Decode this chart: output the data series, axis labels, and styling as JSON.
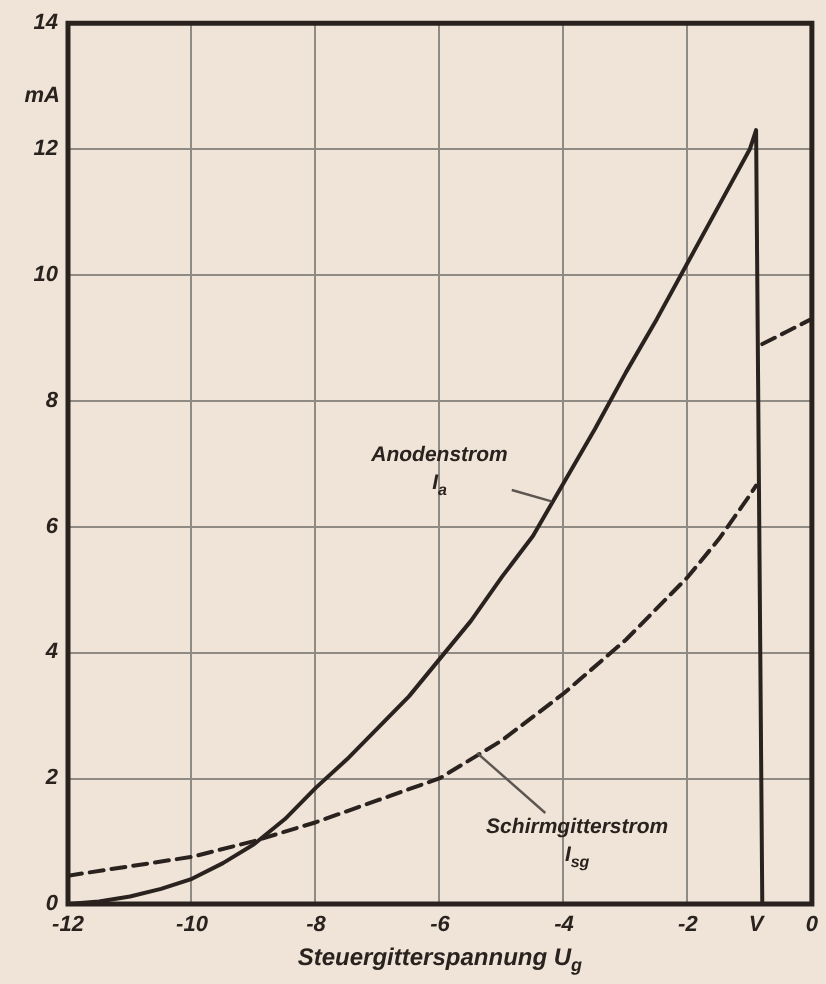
{
  "chart_data": {
    "type": "line",
    "xlabel": "Steuergitterspannung U$_{g}$",
    "ylabel": "mA",
    "xlim": [
      -12,
      0
    ],
    "ylim": [
      0,
      14
    ],
    "xticks": [
      -12,
      -10,
      -8,
      -6,
      -4,
      -2,
      {
        "value": -0.9,
        "label": "V"
      },
      0
    ],
    "yticks": [
      0,
      2,
      4,
      6,
      8,
      10,
      12,
      14
    ],
    "grid": true,
    "series": [
      {
        "color": "#2a221e",
        "line_style": "solid",
        "x": [
          -12,
          -11.5,
          -11,
          -10.5,
          -10,
          -9.5,
          -9,
          -8.5,
          -8,
          -7.5,
          -7,
          -6.5,
          -6,
          -5.5,
          -5,
          -4.5,
          -4,
          -3.5,
          -3,
          -2.5,
          -2,
          -1.5,
          -1,
          -0.9,
          -0.8
        ],
        "values": [
          0,
          0.04,
          0.12,
          0.24,
          0.4,
          0.65,
          0.95,
          1.35,
          1.85,
          2.3,
          2.8,
          3.3,
          3.9,
          4.5,
          5.2,
          5.85,
          6.7,
          7.55,
          8.45,
          9.3,
          10.2,
          11.1,
          12.0,
          12.3,
          0
        ]
      },
      {
        "color": "#2a221e",
        "line_style": "dashed",
        "x": [
          -12,
          -11,
          -10,
          -9,
          -8,
          -7,
          -6,
          -5,
          -4,
          -3,
          -2,
          -1.5,
          -1,
          -0.9,
          -0.85,
          -0.8,
          -0.4,
          0
        ],
        "values": [
          0.45,
          0.6,
          0.75,
          1.0,
          1.3,
          1.65,
          2.0,
          2.6,
          3.35,
          4.2,
          5.2,
          5.8,
          6.5,
          6.65,
          null,
          8.9,
          9.1,
          9.3
        ]
      }
    ],
    "annotations": [
      {
        "text": "Anodenstrom I$_{a}$",
        "x": -4.2,
        "y": 6.4
      },
      {
        "text": "Schirmgitterstrom I$_{sg}$",
        "x": -5.4,
        "y": 2.4
      }
    ]
  }
}
